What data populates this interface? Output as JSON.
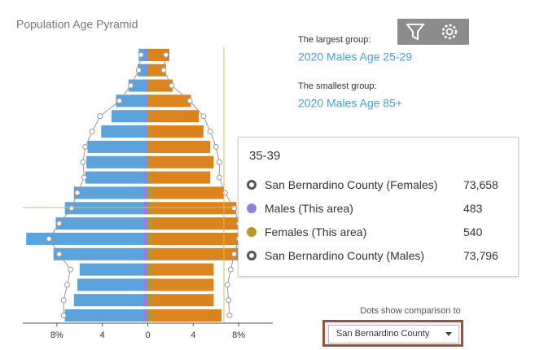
{
  "title": "Population Age Pyramid",
  "summary": {
    "largest_label": "The largest group:",
    "largest_value": "2020 Males Age 25-29",
    "smallest_label": "The smallest group:",
    "smallest_value": "2020 Males Age 85+"
  },
  "chart_data": {
    "type": "bar",
    "orientation": "horizontal",
    "categories": [
      null,
      null,
      null,
      null,
      null,
      null,
      null,
      null,
      null,
      null,
      null,
      null,
      null,
      null,
      null,
      null,
      null,
      null
    ],
    "xlim": [
      -11,
      11
    ],
    "xticks": [
      {
        "value": -8,
        "label": "8%"
      },
      {
        "value": -4,
        "label": "4"
      },
      0,
      4,
      {
        "value": 8,
        "label": "8%"
      }
    ],
    "series": [
      {
        "color": "#5ca3dc",
        "mark": "bar",
        "values": [
          -0.8,
          -0.9,
          -1.7,
          -2.8,
          -3.2,
          -4.1,
          -5.3,
          -5.4,
          -5.5,
          -6.5,
          -7.3,
          -8.1,
          -10.7,
          -8.3,
          -6.0,
          -6.2,
          -6.5,
          -7.3
        ]
      },
      {
        "color": "#d9841e",
        "mark": "bar",
        "values": [
          1.9,
          1.6,
          2.2,
          3.8,
          4.5,
          4.9,
          5.5,
          5.8,
          5.5,
          6.7,
          7.8,
          8.1,
          8.1,
          8.1,
          5.8,
          5.8,
          5.8,
          6.5
        ]
      },
      {
        "name": "Males (This area)",
        "color": "#8c84dc",
        "mark": "bar",
        "values": [
          -0.2,
          -0.2,
          -0.2,
          -0.2,
          -0.2,
          -0.2,
          -0.2,
          -0.2,
          -0.3,
          -0.4,
          -0.4,
          -0.4,
          -0.4,
          -0.4,
          -0.4,
          -0.4,
          -0.4,
          -0.4
        ]
      },
      {
        "name": "Females (This area)",
        "color": "#b8962a",
        "mark": "bar",
        "values": [
          0.2,
          0.2,
          0.2,
          0.2,
          0.2,
          0.2,
          0.2,
          0.2,
          0.3,
          0.4,
          0.4,
          0.4,
          0.4,
          0.4,
          0.4,
          0.4,
          0.4,
          0.4
        ]
      },
      {
        "name": "San Bernardino County (Females)",
        "color": "#999999",
        "mark": "dot",
        "values": [
          1.6,
          1.4,
          2.1,
          3.7,
          4.9,
          5.5,
          6.0,
          6.3,
          6.3,
          6.8,
          7.6,
          8.0,
          8.0,
          7.6,
          7.3,
          7.0,
          7.1,
          7.2
        ]
      },
      {
        "name": "San Bernardino County (Males)",
        "color": "#999999",
        "mark": "dot",
        "values": [
          -0.6,
          -0.8,
          -1.5,
          -2.5,
          -4.2,
          -4.9,
          -5.5,
          -5.7,
          -5.6,
          -6.2,
          -6.7,
          -7.8,
          -8.7,
          -7.8,
          -6.8,
          -7.1,
          -7.4,
          -7.4
        ]
      }
    ]
  },
  "tooltip": {
    "title": "35-39",
    "values": [
      "73,658",
      "483",
      "540",
      "73,796"
    ]
  },
  "comparison": {
    "label": "Dots show comparison to",
    "selected": "San Bernardino County"
  }
}
